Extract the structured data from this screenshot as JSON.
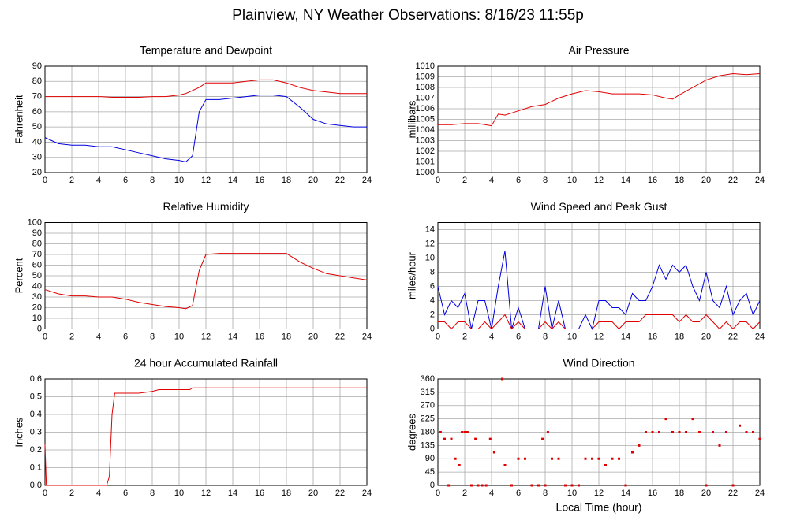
{
  "title": "Plainview, NY Weather Observations: 8/16/23 11:55p",
  "chart_data": [
    {
      "type": "line",
      "title": "Temperature and Dewpoint",
      "ylabel": "Fahrenheit",
      "grid": true,
      "xlim": [
        0,
        24
      ],
      "xticks": [
        0,
        2,
        4,
        6,
        8,
        10,
        12,
        14,
        16,
        18,
        20,
        22,
        24
      ],
      "ylim": [
        20,
        90
      ],
      "yticks": [
        20,
        30,
        40,
        50,
        60,
        70,
        80,
        90
      ],
      "x": [
        0,
        1,
        2,
        3,
        4,
        5,
        6,
        7,
        8,
        9,
        10,
        10.5,
        11,
        11.5,
        12,
        13,
        14,
        15,
        16,
        17,
        18,
        19,
        20,
        21,
        22,
        23,
        24
      ],
      "series": [
        {
          "color": "#e00000",
          "values": [
            70,
            70,
            70,
            70,
            70,
            69.5,
            69.5,
            69.5,
            70,
            70,
            71,
            72,
            74,
            76,
            79,
            79,
            79,
            80,
            81,
            81,
            79,
            76,
            74,
            73,
            72,
            72,
            72
          ]
        },
        {
          "color": "#0000e0",
          "values": [
            43,
            39,
            38,
            38,
            37,
            37,
            35,
            33,
            31,
            29,
            28,
            27,
            31,
            60,
            68,
            68,
            69,
            70,
            71,
            71,
            70,
            63,
            55,
            52,
            51,
            50,
            50
          ]
        }
      ]
    },
    {
      "type": "line",
      "title": "Air Pressure",
      "ylabel": "millibars",
      "grid": true,
      "xlim": [
        0,
        24
      ],
      "xticks": [
        0,
        2,
        4,
        6,
        8,
        10,
        12,
        14,
        16,
        18,
        20,
        22,
        24
      ],
      "ylim": [
        1000,
        1010
      ],
      "yticks": [
        1000,
        1001,
        1002,
        1003,
        1004,
        1005,
        1006,
        1007,
        1008,
        1009,
        1010
      ],
      "x": [
        0,
        1,
        2,
        3,
        4,
        4.5,
        5,
        6,
        7,
        8,
        9,
        10,
        11,
        12,
        13,
        14,
        15,
        16,
        17,
        17.5,
        18,
        19,
        20,
        21,
        22,
        23,
        24
      ],
      "series": [
        {
          "color": "#e00000",
          "values": [
            1004.5,
            1004.5,
            1004.6,
            1004.6,
            1004.4,
            1005.5,
            1005.4,
            1005.8,
            1006.2,
            1006.4,
            1007,
            1007.4,
            1007.7,
            1007.6,
            1007.4,
            1007.4,
            1007.4,
            1007.3,
            1007,
            1006.9,
            1007.3,
            1008,
            1008.7,
            1009.1,
            1009.3,
            1009.2,
            1009.3
          ]
        }
      ]
    },
    {
      "type": "line",
      "title": "Relative Humidity",
      "ylabel": "Percent",
      "grid": true,
      "xlim": [
        0,
        24
      ],
      "xticks": [
        0,
        2,
        4,
        6,
        8,
        10,
        12,
        14,
        16,
        18,
        20,
        22,
        24
      ],
      "ylim": [
        0,
        100
      ],
      "yticks": [
        0,
        10,
        20,
        30,
        40,
        50,
        60,
        70,
        80,
        90,
        100
      ],
      "x": [
        0,
        1,
        2,
        3,
        4,
        5,
        6,
        7,
        8,
        9,
        10,
        10.5,
        11,
        11.5,
        12,
        13,
        14,
        15,
        16,
        17,
        18,
        19,
        20,
        21,
        22,
        23,
        24
      ],
      "series": [
        {
          "color": "#e00000",
          "values": [
            37,
            33,
            31,
            31,
            30,
            30,
            28,
            25,
            23,
            21,
            20,
            19,
            22,
            55,
            70,
            71,
            71,
            71,
            71,
            71,
            71,
            63,
            57,
            52,
            50,
            48,
            46
          ]
        }
      ]
    },
    {
      "type": "line",
      "title": "Wind Speed and Peak Gust",
      "ylabel": "miles/hour",
      "grid": true,
      "xlim": [
        0,
        24
      ],
      "xticks": [
        0,
        2,
        4,
        6,
        8,
        10,
        12,
        14,
        16,
        18,
        20,
        22,
        24
      ],
      "ylim": [
        0,
        15
      ],
      "yticks": [
        0,
        2,
        4,
        6,
        8,
        10,
        12,
        14
      ],
      "x": [
        0,
        0.5,
        1,
        1.5,
        2,
        2.5,
        3,
        3.5,
        4,
        4.5,
        5,
        5.5,
        6,
        6.5,
        7,
        7.5,
        8,
        8.5,
        9,
        9.5,
        10,
        10.5,
        11,
        11.5,
        12,
        12.5,
        13,
        13.5,
        14,
        14.5,
        15,
        15.5,
        16,
        16.5,
        17,
        17.5,
        18,
        18.5,
        19,
        19.5,
        20,
        20.5,
        21,
        21.5,
        22,
        22.5,
        23,
        23.5,
        24
      ],
      "series": [
        {
          "color": "#0000e0",
          "values": [
            6,
            2,
            4,
            3,
            5,
            0,
            4,
            4,
            0,
            6,
            11,
            0,
            3,
            0,
            0,
            0,
            6,
            0,
            4,
            0,
            0,
            0,
            2,
            0,
            4,
            4,
            3,
            3,
            2,
            5,
            4,
            4,
            6,
            9,
            7,
            9,
            8,
            9,
            6,
            4,
            8,
            4,
            3,
            6,
            2,
            4,
            5,
            2,
            4
          ]
        },
        {
          "color": "#e00000",
          "values": [
            1,
            1,
            0,
            1,
            1,
            0,
            0,
            1,
            0,
            1,
            2,
            0,
            1,
            0,
            0,
            0,
            1,
            0,
            1,
            0,
            0,
            0,
            0,
            0,
            1,
            1,
            1,
            0,
            1,
            1,
            1,
            2,
            2,
            2,
            2,
            2,
            1,
            2,
            1,
            1,
            2,
            1,
            0,
            1,
            0,
            1,
            1,
            0,
            1
          ]
        }
      ]
    },
    {
      "type": "line",
      "title": "24 hour Accumulated Rainfall",
      "ylabel": "Inches",
      "grid": true,
      "xlim": [
        0,
        24
      ],
      "xticks": [
        0,
        2,
        4,
        6,
        8,
        10,
        12,
        14,
        16,
        18,
        20,
        22,
        24
      ],
      "ylim": [
        0,
        0.6
      ],
      "yticks": [
        {
          "value": 0,
          "label": "0.0"
        },
        0.1,
        0.2,
        0.3,
        0.4,
        0.5,
        0.6
      ],
      "x": [
        0,
        0.1,
        0.2,
        4.6,
        4.8,
        5,
        5.2,
        6,
        7,
        8,
        8.5,
        9,
        10,
        10.8,
        11,
        24
      ],
      "series": [
        {
          "color": "#e00000",
          "values": [
            0.23,
            0,
            0,
            0,
            0.05,
            0.4,
            0.52,
            0.52,
            0.52,
            0.53,
            0.54,
            0.54,
            0.54,
            0.54,
            0.55,
            0.55
          ]
        }
      ]
    },
    {
      "type": "scatter",
      "title": "Wind Direction",
      "ylabel": "degrees",
      "xlabel": "Local Time (hour)",
      "grid": true,
      "xlim": [
        0,
        24
      ],
      "xticks": [
        0,
        2,
        4,
        6,
        8,
        10,
        12,
        14,
        16,
        18,
        20,
        22,
        24
      ],
      "ylim": [
        0,
        360
      ],
      "yticks": [
        0,
        45,
        90,
        135,
        180,
        225,
        270,
        315,
        360
      ],
      "x": [
        0.2,
        0.5,
        0.8,
        1,
        1.3,
        1.6,
        1.8,
        2,
        2.2,
        2.5,
        2.8,
        3,
        3.3,
        3.6,
        3.9,
        4.2,
        4.8,
        5,
        5.5,
        6,
        6.5,
        7,
        7.5,
        7.8,
        8,
        8.2,
        8.5,
        9,
        9.5,
        10,
        10.5,
        11,
        11.5,
        12,
        12.5,
        13,
        13.5,
        14,
        14.5,
        15,
        15.5,
        16,
        16.5,
        17,
        17.5,
        18,
        18.5,
        19,
        19.5,
        20,
        20.5,
        21,
        21.5,
        22,
        22.5,
        23,
        23.5,
        24
      ],
      "series": [
        {
          "color": "#e00000",
          "values": [
            180,
            157,
            0,
            157,
            90,
            68,
            180,
            180,
            180,
            0,
            157,
            0,
            0,
            0,
            157,
            112,
            360,
            68,
            0,
            90,
            90,
            0,
            0,
            157,
            0,
            180,
            90,
            90,
            0,
            0,
            0,
            90,
            90,
            90,
            68,
            90,
            90,
            0,
            112,
            135,
            180,
            180,
            180,
            225,
            180,
            180,
            180,
            225,
            180,
            0,
            180,
            135,
            180,
            0,
            202,
            180,
            180,
            157
          ]
        }
      ]
    }
  ]
}
